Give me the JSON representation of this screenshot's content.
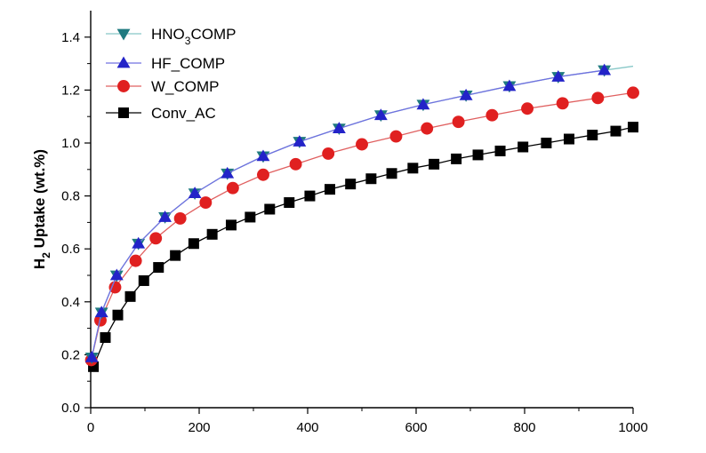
{
  "chart_data": {
    "type": "line",
    "title": "",
    "xlabel": "",
    "ylabel": "H2 Uptake (wt.%)",
    "ylabel_parts": {
      "prefix": "H",
      "subscript": "2",
      "suffix": " Uptake (wt.%)"
    },
    "xlim": [
      0,
      1000
    ],
    "ylim": [
      0.0,
      1.5
    ],
    "xticks": [
      0,
      200,
      400,
      600,
      800,
      1000
    ],
    "yticks": [
      0.0,
      0.2,
      0.4,
      0.6,
      0.8,
      1.0,
      1.2,
      1.4
    ],
    "grid": false,
    "legend_position": "top-left",
    "series": [
      {
        "name": "HNO3COMP",
        "name_parts": {
          "prefix": "HNO",
          "subscript": "3",
          "suffix": "COMP"
        },
        "marker": "triangle-down",
        "marker_color": "#1f7a80",
        "line_color": "#88c8c8",
        "x": [
          2,
          20,
          48,
          88,
          137,
          192,
          252,
          318,
          385,
          458,
          535,
          613,
          692,
          772,
          862,
          947,
          1000
        ],
        "y": [
          0.19,
          0.36,
          0.5,
          0.62,
          0.72,
          0.81,
          0.885,
          0.95,
          1.005,
          1.055,
          1.105,
          1.145,
          1.18,
          1.215,
          1.25,
          1.275,
          1.29
        ]
      },
      {
        "name": "HF_COMP",
        "marker": "triangle-up",
        "marker_color": "#2323c8",
        "line_color": "#7070e0",
        "x": [
          2,
          20,
          48,
          88,
          137,
          192,
          252,
          318,
          385,
          458,
          535,
          613,
          692,
          772,
          862,
          947
        ],
        "y": [
          0.19,
          0.36,
          0.5,
          0.62,
          0.72,
          0.81,
          0.885,
          0.95,
          1.005,
          1.055,
          1.105,
          1.145,
          1.18,
          1.215,
          1.25,
          1.275
        ]
      },
      {
        "name": "W_COMP",
        "marker": "circle",
        "marker_color": "#e02020",
        "line_color": "#e06060",
        "x": [
          1,
          18,
          45,
          83,
          120,
          165,
          212,
          262,
          318,
          378,
          438,
          500,
          563,
          620,
          678,
          740,
          805,
          870,
          935,
          1000
        ],
        "y": [
          0.18,
          0.33,
          0.455,
          0.555,
          0.64,
          0.715,
          0.775,
          0.83,
          0.88,
          0.92,
          0.96,
          0.995,
          1.025,
          1.055,
          1.08,
          1.105,
          1.13,
          1.15,
          1.17,
          1.19
        ]
      },
      {
        "name": "Conv_AC",
        "marker": "square",
        "marker_color": "#000000",
        "line_color": "#000000",
        "x": [
          5,
          27,
          50,
          73,
          98,
          125,
          156,
          190,
          224,
          259,
          294,
          330,
          366,
          404,
          441,
          479,
          517,
          555,
          594,
          633,
          674,
          714,
          755,
          797,
          840,
          882,
          925,
          968,
          1000
        ],
        "y": [
          0.155,
          0.265,
          0.35,
          0.42,
          0.48,
          0.53,
          0.575,
          0.62,
          0.655,
          0.69,
          0.72,
          0.75,
          0.775,
          0.8,
          0.825,
          0.845,
          0.865,
          0.885,
          0.905,
          0.92,
          0.94,
          0.955,
          0.97,
          0.985,
          1.0,
          1.015,
          1.03,
          1.045,
          1.06
        ]
      }
    ]
  }
}
